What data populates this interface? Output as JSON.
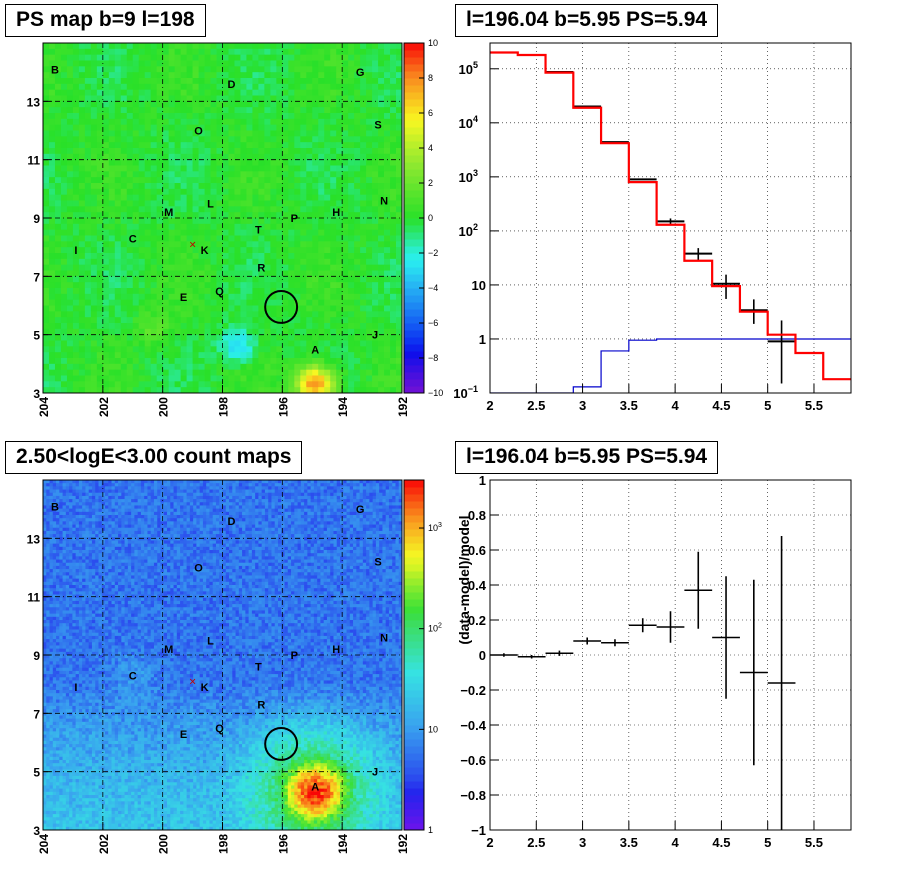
{
  "titles": {
    "ps_map": "PS map b=9 l=198",
    "spectrum": "l=196.04 b=5.95 PS=5.94",
    "count_map": "2.50<logE<3.00 count maps",
    "residual": "l=196.04 b=5.95 PS=5.94"
  },
  "colors": {
    "data": "#000000",
    "model": "#ff0000",
    "ratio": "#0000cc"
  },
  "chart_data": [
    {
      "type": "heatmap",
      "panel": "ps_map",
      "xlim": [
        204,
        192
      ],
      "ylim": [
        3,
        15
      ],
      "x_ticks": [
        {
          "v": 204,
          "t": "204"
        },
        {
          "v": 202,
          "t": "202"
        },
        {
          "v": 200,
          "t": "200"
        },
        {
          "v": 198,
          "t": "198"
        },
        {
          "v": 196,
          "t": "196"
        },
        {
          "v": 194,
          "t": "194"
        },
        {
          "v": 192,
          "t": "192"
        }
      ],
      "y_ticks": [
        {
          "v": 3,
          "t": "3"
        },
        {
          "v": 5,
          "t": "5"
        },
        {
          "v": 7,
          "t": "7"
        },
        {
          "v": 9,
          "t": "9"
        },
        {
          "v": 11,
          "t": "11"
        },
        {
          "v": 13,
          "t": "13"
        }
      ],
      "colorbar": {
        "scale": "linear",
        "range": [
          -10,
          10
        ],
        "ticks": [
          {
            "v": 10,
            "t": "10"
          },
          {
            "v": 8,
            "t": "8"
          },
          {
            "v": 6,
            "t": "6"
          },
          {
            "v": 4,
            "t": "4"
          },
          {
            "v": 2,
            "t": "2"
          },
          {
            "v": 0,
            "t": "0"
          },
          {
            "v": -2,
            "t": "−2"
          },
          {
            "v": -4,
            "t": "−4"
          },
          {
            "v": -6,
            "t": "−6"
          },
          {
            "v": -8,
            "t": "−8"
          },
          {
            "v": -10,
            "t": "−10"
          }
        ]
      },
      "labels": [
        {
          "t": "B",
          "l": 203.6,
          "b": 14.1
        },
        {
          "t": "D",
          "l": 197.7,
          "b": 13.6
        },
        {
          "t": "G",
          "l": 193.4,
          "b": 14.0
        },
        {
          "t": "S",
          "l": 192.8,
          "b": 12.2
        },
        {
          "t": "O",
          "l": 198.8,
          "b": 12.0
        },
        {
          "t": "N",
          "l": 192.6,
          "b": 9.6
        },
        {
          "t": "M",
          "l": 199.8,
          "b": 9.2
        },
        {
          "t": "L",
          "l": 198.4,
          "b": 9.5
        },
        {
          "t": "H",
          "l": 194.2,
          "b": 9.2
        },
        {
          "t": "P",
          "l": 195.6,
          "b": 9.0
        },
        {
          "t": "T",
          "l": 196.8,
          "b": 8.6
        },
        {
          "t": "C",
          "l": 201.0,
          "b": 8.3
        },
        {
          "t": "K",
          "l": 198.6,
          "b": 7.9
        },
        {
          "t": "I",
          "l": 202.9,
          "b": 7.9
        },
        {
          "t": "R",
          "l": 196.7,
          "b": 7.3
        },
        {
          "t": "Q",
          "l": 198.1,
          "b": 6.5
        },
        {
          "t": "E",
          "l": 199.3,
          "b": 6.3
        },
        {
          "t": "J",
          "l": 192.9,
          "b": 5.0
        },
        {
          "t": "A",
          "l": 194.9,
          "b": 4.5
        }
      ],
      "cross": {
        "l": 199.0,
        "b": 8.1
      },
      "circle": {
        "l": 196.04,
        "b": 5.95,
        "r": 0.5
      }
    },
    {
      "type": "line",
      "panel": "spectrum",
      "xlim": [
        2,
        5.9
      ],
      "ylim": [
        0.1,
        300000
      ],
      "yscale": "log",
      "grid": true,
      "x_ticks": [
        {
          "v": 2,
          "t": "2"
        },
        {
          "v": 2.5,
          "t": "2.5"
        },
        {
          "v": 3,
          "t": "3"
        },
        {
          "v": 3.5,
          "t": "3.5"
        },
        {
          "v": 4,
          "t": "4"
        },
        {
          "v": 4.5,
          "t": "4.5"
        },
        {
          "v": 5,
          "t": "5"
        },
        {
          "v": 5.5,
          "t": "5.5"
        }
      ],
      "y_ticks": [
        {
          "v": 0.1,
          "t": "10",
          "sup": "−1"
        },
        {
          "v": 1,
          "t": "1",
          "sup": ""
        },
        {
          "v": 10,
          "t": "10",
          "sup": ""
        },
        {
          "v": 100,
          "t": "10",
          "sup": "2"
        },
        {
          "v": 1000,
          "t": "10",
          "sup": "3"
        },
        {
          "v": 10000,
          "t": "10",
          "sup": "4"
        },
        {
          "v": 100000,
          "t": "10",
          "sup": "5"
        }
      ],
      "bin_edges": [
        2.0,
        2.3,
        2.6,
        2.9,
        3.2,
        3.5,
        3.8,
        4.1,
        4.4,
        4.7,
        5.0,
        5.3,
        5.6,
        5.9
      ],
      "series": [
        {
          "role": "model",
          "values": [
            200000,
            180000,
            85000,
            19000,
            4200,
            800,
            130,
            28,
            9.5,
            3.2,
            1.2,
            0.55,
            0.18
          ]
        },
        {
          "role": "data",
          "values": [
            200000,
            180000,
            87000,
            20000,
            4400,
            900,
            150,
            38,
            10.5,
            3.4,
            0.9
          ],
          "err_low": [
            0,
            0,
            0,
            0,
            0,
            0,
            20,
            10,
            5,
            1.5,
            0.75
          ],
          "err_high": [
            0,
            0,
            0,
            0,
            0,
            0,
            20,
            10,
            5,
            2,
            1.3
          ]
        },
        {
          "role": "ratio",
          "values": [
            0.1,
            0.1,
            0.1,
            0.13,
            0.6,
            0.95,
            1.0,
            1.0,
            1.0,
            1.0,
            1.0,
            1.0,
            1.0
          ]
        }
      ]
    },
    {
      "type": "heatmap",
      "panel": "count_map",
      "xlim": [
        204,
        192
      ],
      "ylim": [
        3,
        15
      ],
      "x_ticks": [
        {
          "v": 204,
          "t": "204"
        },
        {
          "v": 202,
          "t": "202"
        },
        {
          "v": 200,
          "t": "200"
        },
        {
          "v": 198,
          "t": "198"
        },
        {
          "v": 196,
          "t": "196"
        },
        {
          "v": 194,
          "t": "194"
        },
        {
          "v": 192,
          "t": "192"
        }
      ],
      "y_ticks": [
        {
          "v": 3,
          "t": "3"
        },
        {
          "v": 5,
          "t": "5"
        },
        {
          "v": 7,
          "t": "7"
        },
        {
          "v": 9,
          "t": "9"
        },
        {
          "v": 11,
          "t": "11"
        },
        {
          "v": 13,
          "t": "13"
        }
      ],
      "colorbar": {
        "scale": "log",
        "range": [
          1,
          3000
        ],
        "ticks": [
          {
            "v": 1,
            "t": "1",
            "sup": ""
          },
          {
            "v": 10,
            "t": "10",
            "sup": ""
          },
          {
            "v": 100,
            "t": "10",
            "sup": "2"
          },
          {
            "v": 1000,
            "t": "10",
            "sup": "3"
          }
        ]
      },
      "labels": [
        {
          "t": "B",
          "l": 203.6,
          "b": 14.1
        },
        {
          "t": "D",
          "l": 197.7,
          "b": 13.6
        },
        {
          "t": "G",
          "l": 193.4,
          "b": 14.0
        },
        {
          "t": "S",
          "l": 192.8,
          "b": 12.2
        },
        {
          "t": "O",
          "l": 198.8,
          "b": 12.0
        },
        {
          "t": "N",
          "l": 192.6,
          "b": 9.6
        },
        {
          "t": "M",
          "l": 199.8,
          "b": 9.2
        },
        {
          "t": "L",
          "l": 198.4,
          "b": 9.5
        },
        {
          "t": "H",
          "l": 194.2,
          "b": 9.2
        },
        {
          "t": "P",
          "l": 195.6,
          "b": 9.0
        },
        {
          "t": "T",
          "l": 196.8,
          "b": 8.6
        },
        {
          "t": "C",
          "l": 201.0,
          "b": 8.3
        },
        {
          "t": "K",
          "l": 198.6,
          "b": 7.9
        },
        {
          "t": "I",
          "l": 202.9,
          "b": 7.9
        },
        {
          "t": "R",
          "l": 196.7,
          "b": 7.3
        },
        {
          "t": "Q",
          "l": 198.1,
          "b": 6.5
        },
        {
          "t": "E",
          "l": 199.3,
          "b": 6.3
        },
        {
          "t": "J",
          "l": 192.9,
          "b": 5.0
        },
        {
          "t": "A",
          "l": 194.9,
          "b": 4.5
        }
      ],
      "cross": {
        "l": 199.0,
        "b": 8.1
      },
      "circle": {
        "l": 196.04,
        "b": 5.95,
        "r": 0.5
      }
    },
    {
      "type": "scatter",
      "panel": "residual",
      "xlim": [
        2,
        5.9
      ],
      "ylim": [
        -1,
        1
      ],
      "grid": true,
      "ylabel": "(data-model)/model",
      "x_ticks": [
        {
          "v": 2,
          "t": "2"
        },
        {
          "v": 2.5,
          "t": "2.5"
        },
        {
          "v": 3,
          "t": "3"
        },
        {
          "v": 3.5,
          "t": "3.5"
        },
        {
          "v": 4,
          "t": "4"
        },
        {
          "v": 4.5,
          "t": "4.5"
        },
        {
          "v": 5,
          "t": "5"
        },
        {
          "v": 5.5,
          "t": "5.5"
        }
      ],
      "y_ticks": [
        {
          "v": -1,
          "t": "−1"
        },
        {
          "v": -0.8,
          "t": "−0.8"
        },
        {
          "v": -0.6,
          "t": "−0.6"
        },
        {
          "v": -0.4,
          "t": "−0.4"
        },
        {
          "v": -0.2,
          "t": "−0.2"
        },
        {
          "v": 0,
          "t": "0"
        },
        {
          "v": 0.2,
          "t": "0.2"
        },
        {
          "v": 0.4,
          "t": "0.4"
        },
        {
          "v": 0.6,
          "t": "0.6"
        },
        {
          "v": 0.8,
          "t": "0.8"
        },
        {
          "v": 1,
          "t": "1"
        }
      ],
      "bin_edges": [
        2.0,
        2.3,
        2.6,
        2.9,
        3.2,
        3.5,
        3.8,
        4.1,
        4.4,
        4.7,
        5.0,
        5.3,
        5.6,
        5.9
      ],
      "points": [
        {
          "y": 0.0,
          "e": 0.01
        },
        {
          "y": -0.01,
          "e": 0.01
        },
        {
          "y": 0.01,
          "e": 0.015
        },
        {
          "y": 0.08,
          "e": 0.02
        },
        {
          "y": 0.07,
          "e": 0.02
        },
        {
          "y": 0.17,
          "e": 0.04
        },
        {
          "y": 0.16,
          "e": 0.09
        },
        {
          "y": 0.37,
          "e": 0.22
        },
        {
          "y": 0.1,
          "e": 0.35
        },
        {
          "y": -0.1,
          "e": 0.53
        },
        {
          "y": -0.16,
          "e": 0.84
        }
      ]
    }
  ]
}
